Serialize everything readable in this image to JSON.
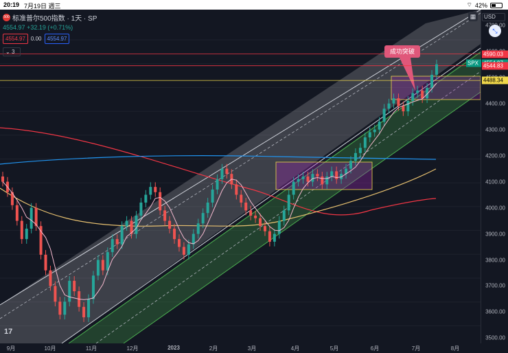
{
  "status_bar": {
    "time": "20:19",
    "date": "7月19日 週三",
    "battery": "42%"
  },
  "header": {
    "logo_text": "500",
    "title": "标准普尔500指数 · 1天 · SP",
    "last_price": "4554.97",
    "change": "+32.19 (+0.71%)",
    "sell_price": "4554.97",
    "spread": "0.00",
    "buy_price": "4554.97",
    "collapse_label": "3"
  },
  "currency": "USD",
  "annotation": "成功突破",
  "price_axis": {
    "ticks": [
      "4700.00",
      "4600.00",
      "4500.00",
      "4400.00",
      "4300.00",
      "4200.00",
      "4100.00",
      "4000.00",
      "3900.00",
      "3800.00",
      "3700.00",
      "3600.00",
      "3500.00"
    ],
    "labels": [
      {
        "text": "4590.03",
        "color": "#f23645",
        "value": 4590.03
      },
      {
        "text": "4554.97",
        "color": "#089981",
        "value": 4554.97
      },
      {
        "text": "4544.83",
        "color": "#f23645",
        "value": 4544.83
      },
      {
        "text": "4488.34",
        "color": "#f0d84a",
        "value": 4488.34
      }
    ],
    "symbol_tag": "SPX"
  },
  "time_axis": [
    "9月",
    "10月",
    "11月",
    "12月",
    "2023",
    "2月",
    "3月",
    "4月",
    "5月",
    "6月",
    "7月",
    "8月"
  ],
  "chart_data": {
    "type": "candlestick",
    "symbol": "SPX",
    "interval": "1天",
    "ylim": [
      3480,
      4760
    ],
    "horizontal_levels": [
      4590.03,
      4544.83,
      4488.34
    ],
    "series": [
      {
        "name": "close",
        "values": [
          4100,
          4060,
          4010,
          3950,
          3880,
          3920,
          4000,
          3930,
          3820,
          3760,
          3700,
          3640,
          3590,
          3640,
          3720,
          3680,
          3620,
          3580,
          3650,
          3740,
          3800,
          3760,
          3830,
          3880,
          3860,
          3930,
          3950,
          3900,
          3970,
          4020,
          4050,
          4080,
          4060,
          3990,
          3950,
          3920,
          3880,
          3850,
          3820,
          3860,
          3900,
          3940,
          3980,
          4020,
          4070,
          4110,
          4150,
          4130,
          4090,
          4050,
          4020,
          3990,
          3970,
          3960,
          3930,
          3910,
          3870,
          3900,
          3950,
          3990,
          4050,
          4100,
          4110,
          4120,
          4100,
          4130,
          4120,
          4090,
          4120,
          4140,
          4110,
          4130,
          4150,
          4180,
          4210,
          4230,
          4270,
          4290,
          4300,
          4330,
          4380,
          4400,
          4420,
          4390,
          4370,
          4410,
          4440,
          4450,
          4420,
          4460,
          4510,
          4550
        ]
      }
    ]
  }
}
